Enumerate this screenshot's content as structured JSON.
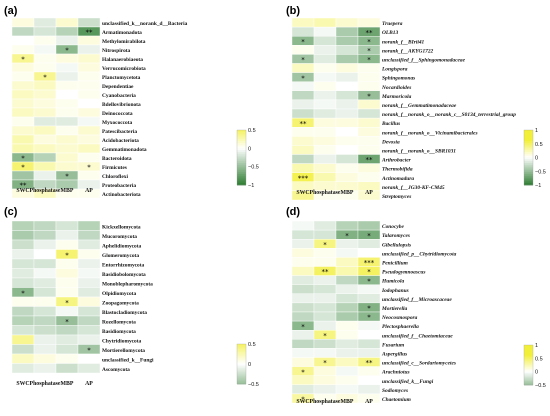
{
  "colors": {
    "low": "#2e7d32",
    "mid": "#ffffff",
    "high": "#f2ef3a"
  },
  "chart_data": [
    {
      "type": "heatmap",
      "panel_label": "(a)",
      "x": [
        "SWC",
        "Phosphatase",
        "MBP",
        "AP"
      ],
      "rows": [
        "unclassified_k__norank_d__Bacteria",
        "Armatimonadota",
        "Methylomirabilota",
        "Nitrospirota",
        "Halanaerobiaeota",
        "Verrucomicrobiota",
        "Planctomycetota",
        "Dependentiae",
        "Cyanobacteria",
        "Bdellovibrionota",
        "Deinococcota",
        "Myxococcota",
        "Patescibacteria",
        "Acidobacteriota",
        "Gemmatimonadota",
        "Bacteroidota",
        "Firmicutes",
        "Chloroflexi",
        "Proteobacteria",
        "Actinobacteriota"
      ],
      "values": [
        [
          0.1,
          -0.15,
          0.15,
          -0.25
        ],
        [
          -0.3,
          -0.2,
          -0.35,
          -0.8
        ],
        [
          0.0,
          0.05,
          -0.1,
          0.1
        ],
        [
          0.05,
          -0.05,
          -0.55,
          -0.1
        ],
        [
          0.35,
          0.05,
          0.1,
          0.15
        ],
        [
          0.1,
          0.05,
          -0.05,
          0.1
        ],
        [
          0.05,
          0.35,
          -0.1,
          0.05
        ],
        [
          0.15,
          0.2,
          0.05,
          0.05
        ],
        [
          0.2,
          0.15,
          0.0,
          0.05
        ],
        [
          0.15,
          0.1,
          0.05,
          0.0
        ],
        [
          0.2,
          0.15,
          0.05,
          0.1
        ],
        [
          0.05,
          -0.15,
          -0.15,
          -0.05
        ],
        [
          0.15,
          0.2,
          0.05,
          0.15
        ],
        [
          0.25,
          0.1,
          0.15,
          0.1
        ],
        [
          0.25,
          0.2,
          0.15,
          0.2
        ],
        [
          -0.55,
          -0.35,
          0.15,
          0.05
        ],
        [
          0.45,
          0.25,
          0.15,
          0.15
        ],
        [
          -0.45,
          -0.1,
          -0.5,
          0.05
        ],
        [
          -0.6,
          -0.3,
          -0.4,
          -0.1
        ],
        [
          0.1,
          0.2,
          0.05,
          0.05
        ]
      ],
      "stars": [
        [
          "",
          "",
          "",
          ""
        ],
        [
          "",
          "",
          "",
          "**"
        ],
        [
          "",
          "",
          "",
          ""
        ],
        [
          "",
          "",
          "*",
          ""
        ],
        [
          "*",
          "",
          "",
          ""
        ],
        [
          "",
          "",
          "",
          ""
        ],
        [
          "",
          "*",
          "",
          ""
        ],
        [
          "",
          "",
          "",
          ""
        ],
        [
          "",
          "",
          "",
          ""
        ],
        [
          "",
          "",
          "",
          ""
        ],
        [
          "",
          "",
          "",
          ""
        ],
        [
          "",
          "",
          "",
          ""
        ],
        [
          "",
          "",
          "",
          ""
        ],
        [
          "",
          "",
          "",
          ""
        ],
        [
          "",
          "",
          "",
          ""
        ],
        [
          "*",
          "",
          "",
          ""
        ],
        [
          "*",
          "",
          "",
          "*"
        ],
        [
          "",
          "",
          "*",
          ""
        ],
        [
          "**",
          "",
          "",
          ""
        ],
        [
          "",
          "",
          "",
          ""
        ]
      ],
      "colorbar_ticks": [
        "0.5",
        "0",
        "−0.5",
        "−1"
      ]
    },
    {
      "type": "heatmap",
      "panel_label": "(b)",
      "x": [
        "SWC",
        "Phosphatase",
        "MBP",
        "AP"
      ],
      "rows": [
        "Truepera",
        "OLB13",
        "norank_f__BIrii41",
        "norank_f__AKYG1722",
        "unclassified_f__Sphingomonadaceae",
        "Longispora",
        "Sphingomonas",
        "Nocardioides",
        "Marmoricola",
        "norank_f__Gemmatimonadaceae",
        "norank_f__norank_o__norank_c__S0134_terrestrial_group",
        "Bacillus",
        "norank_f__norank_o__Vicinamibacterales",
        "Devosia",
        "norank_f__norank_o__SBR1031",
        "Arthrobacter",
        "Thermobifida",
        "Actinomadura",
        "norank_f__JG30-KF-CM45",
        "Streptomyces"
      ],
      "values": [
        [
          0.2,
          0.25,
          0.15,
          0.1
        ],
        [
          -0.2,
          -0.05,
          -0.4,
          -0.7
        ],
        [
          -0.55,
          -0.2,
          -0.4,
          -0.55
        ],
        [
          0.05,
          -0.1,
          -0.2,
          -0.4
        ],
        [
          -0.45,
          -0.15,
          -0.4,
          -0.55
        ],
        [
          0.2,
          0.05,
          0.1,
          0.05
        ],
        [
          -0.45,
          -0.05,
          -0.1,
          0.05
        ],
        [
          -0.05,
          0.05,
          0.0,
          0.05
        ],
        [
          -0.3,
          -0.1,
          -0.2,
          -0.5
        ],
        [
          -0.1,
          -0.05,
          -0.1,
          0.15
        ],
        [
          -0.25,
          -0.15,
          -0.1,
          -0.2
        ],
        [
          0.45,
          0.1,
          0.1,
          0.15
        ],
        [
          0.05,
          0.05,
          0.0,
          0.1
        ],
        [
          0.15,
          0.1,
          0.05,
          0.05
        ],
        [
          0.2,
          0.05,
          0.0,
          0.05
        ],
        [
          -0.3,
          -0.1,
          -0.2,
          -0.7
        ],
        [
          0.25,
          0.15,
          0.05,
          0.1
        ],
        [
          0.55,
          0.25,
          0.1,
          0.05
        ],
        [
          0.2,
          0.15,
          0.15,
          0.2
        ],
        [
          0.35,
          0.05,
          0.05,
          0.15
        ]
      ],
      "stars": [
        [
          "",
          "",
          "",
          ""
        ],
        [
          "",
          "",
          "",
          "**"
        ],
        [
          "*",
          "",
          "",
          "*"
        ],
        [
          "",
          "",
          "",
          "*"
        ],
        [
          "*",
          "",
          "",
          "*"
        ],
        [
          "",
          "",
          "",
          ""
        ],
        [
          "*",
          "",
          "",
          ""
        ],
        [
          "",
          "",
          "",
          ""
        ],
        [
          "",
          "",
          "",
          "*"
        ],
        [
          "",
          "",
          "",
          ""
        ],
        [
          "",
          "",
          "",
          ""
        ],
        [
          "**",
          "",
          "",
          ""
        ],
        [
          "",
          "",
          "",
          ""
        ],
        [
          "",
          "",
          "",
          ""
        ],
        [
          "",
          "",
          "",
          ""
        ],
        [
          "",
          "",
          "",
          "**"
        ],
        [
          "",
          "",
          "",
          ""
        ],
        [
          "***",
          "",
          "",
          ""
        ],
        [
          "",
          "",
          "",
          ""
        ],
        [
          "",
          "",
          "",
          ""
        ]
      ],
      "colorbar_ticks": [
        "1",
        "0.5",
        "0",
        "−0.5",
        "−1"
      ]
    },
    {
      "type": "heatmap",
      "panel_label": "(c)",
      "x": [
        "SWC",
        "Phosphatase",
        "MBP",
        "AP"
      ],
      "rows": [
        "Kickxellomycota",
        "Mucoromycota",
        "Aphelidiomycota",
        "Glomeromycota",
        "Entorrhizomycota",
        "Basidiobolomycota",
        "Monoblepharomycota",
        "Olpidiomycota",
        "Zoopagomycota",
        "Blastocladiomycota",
        "Rozellomycota",
        "Basidiomycota",
        "Chytridiomycota",
        "Mortierellomycota",
        "unclassified_k__Fungi",
        "Ascomycota"
      ],
      "values": [
        [
          -0.35,
          -0.3,
          -0.2,
          -0.35
        ],
        [
          -0.4,
          -0.3,
          -0.1,
          -0.3
        ],
        [
          -0.25,
          -0.1,
          0.05,
          -0.15
        ],
        [
          -0.1,
          0.0,
          0.45,
          0.05
        ],
        [
          -0.2,
          -0.2,
          0.05,
          -0.1
        ],
        [
          -0.15,
          -0.05,
          0.1,
          -0.05
        ],
        [
          -0.2,
          -0.15,
          0.05,
          -0.1
        ],
        [
          -0.55,
          -0.2,
          0.05,
          -0.15
        ],
        [
          0.05,
          0.05,
          0.4,
          0.1
        ],
        [
          -0.3,
          -0.2,
          -0.05,
          -0.2
        ],
        [
          -0.35,
          -0.3,
          -0.5,
          -0.3
        ],
        [
          -0.2,
          -0.25,
          -0.3,
          -0.2
        ],
        [
          0.35,
          -0.1,
          -0.15,
          -0.1
        ],
        [
          -0.25,
          -0.1,
          -0.2,
          -0.45
        ],
        [
          0.2,
          0.1,
          0.05,
          0.0
        ],
        [
          -0.15,
          -0.1,
          -0.25,
          -0.15
        ]
      ],
      "stars": [
        [
          "",
          "",
          "",
          ""
        ],
        [
          "",
          "",
          "",
          ""
        ],
        [
          "",
          "",
          "",
          ""
        ],
        [
          "",
          "",
          "*",
          ""
        ],
        [
          "",
          "",
          "",
          ""
        ],
        [
          "",
          "",
          "",
          ""
        ],
        [
          "",
          "",
          "",
          ""
        ],
        [
          "*",
          "",
          "",
          ""
        ],
        [
          "",
          "",
          "*",
          ""
        ],
        [
          "",
          "",
          "",
          ""
        ],
        [
          "",
          "",
          "*",
          ""
        ],
        [
          "",
          "",
          "",
          ""
        ],
        [
          "",
          "",
          "",
          ""
        ],
        [
          "",
          "",
          "",
          "*"
        ],
        [
          "",
          "",
          "",
          ""
        ],
        [
          "",
          "",
          "",
          ""
        ]
      ],
      "colorbar_ticks": [
        "0.5",
        "0",
        "−0.5"
      ]
    },
    {
      "type": "heatmap",
      "panel_label": "(d)",
      "x": [
        "SWC",
        "Phosphatase",
        "MBP",
        "AP"
      ],
      "rows": [
        "Conocybe",
        "Talaromyces",
        "Gibellulopsis",
        "unclassified_p__Chytridiomycota",
        "Penicillium",
        "Pseudogymnoascus",
        "Humicola",
        "Iodophanus",
        "unclassified_f__Microascaceae",
        "Mortierella",
        "Neocosmospora",
        "Plectosphaerella",
        "unclassified_f__Chaetomiaceae",
        "Fusarium",
        "Aspergillus",
        "unclassified_c__Sordariomycetes",
        "Arachniotus",
        "unclassified_k__Fungi",
        "Sodiomyces",
        "Chaetomium"
      ],
      "values": [
        [
          -0.05,
          -0.15,
          -0.35,
          -0.4
        ],
        [
          -0.2,
          -0.2,
          -0.6,
          -0.65
        ],
        [
          -0.1,
          0.4,
          -0.1,
          -0.15
        ],
        [
          0.1,
          0.05,
          -0.05,
          0.0
        ],
        [
          0.05,
          0.05,
          0.2,
          0.45
        ],
        [
          0.2,
          0.5,
          0.25,
          0.5
        ],
        [
          -0.15,
          -0.1,
          -0.3,
          -0.55
        ],
        [
          -0.25,
          -0.2,
          -0.1,
          -0.05
        ],
        [
          -0.1,
          -0.1,
          -0.2,
          -0.15
        ],
        [
          -0.25,
          -0.2,
          -0.35,
          -0.6
        ],
        [
          -0.3,
          -0.2,
          -0.4,
          -0.55
        ],
        [
          -0.55,
          -0.1,
          0.05,
          -0.05
        ],
        [
          -0.1,
          0.4,
          0.05,
          0.0
        ],
        [
          -0.3,
          -0.25,
          -0.15,
          -0.2
        ],
        [
          -0.05,
          -0.05,
          -0.1,
          -0.1
        ],
        [
          0.1,
          0.35,
          0.2,
          0.4
        ],
        [
          0.35,
          0.1,
          -0.05,
          0.05
        ],
        [
          0.2,
          0.1,
          0.05,
          0.0
        ],
        [
          -0.15,
          -0.1,
          -0.05,
          -0.1
        ],
        [
          0.3,
          0.05,
          0.1,
          0.05
        ]
      ],
      "stars": [
        [
          "",
          "",
          "",
          ""
        ],
        [
          "",
          "",
          "*",
          "*"
        ],
        [
          "",
          "*",
          "",
          ""
        ],
        [
          "",
          "",
          "",
          ""
        ],
        [
          "",
          "",
          "",
          "***"
        ],
        [
          "",
          "**",
          "",
          "*"
        ],
        [
          "",
          "",
          "",
          "*"
        ],
        [
          "",
          "",
          "",
          ""
        ],
        [
          "",
          "",
          "",
          ""
        ],
        [
          "",
          "",
          "",
          "*"
        ],
        [
          "",
          "",
          "",
          "*"
        ],
        [
          "*",
          "",
          "",
          ""
        ],
        [
          "",
          "*",
          "",
          ""
        ],
        [
          "",
          "",
          "",
          ""
        ],
        [
          "",
          "",
          "",
          ""
        ],
        [
          "",
          "*",
          "",
          "**"
        ],
        [
          "*",
          "",
          "",
          ""
        ],
        [
          "",
          "",
          "",
          ""
        ],
        [
          "",
          "",
          "",
          ""
        ],
        [
          "*",
          "",
          "",
          ""
        ]
      ],
      "colorbar_ticks": [
        "1",
        "0.5",
        "0",
        "−0.5"
      ]
    }
  ]
}
